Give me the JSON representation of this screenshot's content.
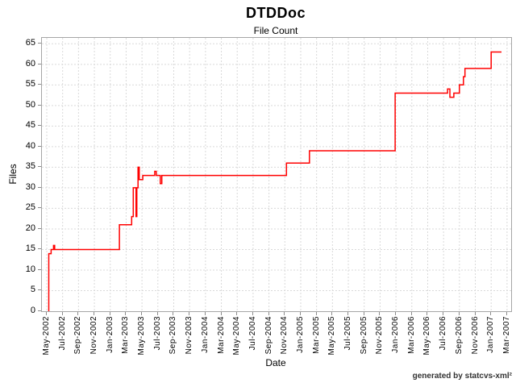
{
  "title": "DTDDoc",
  "subtitle": "File Count",
  "credit": "generated by statcvs-xml²",
  "colors": {
    "line": "#ff0000",
    "grid": "#d9d9d9",
    "plot_border": "#a6a6a6",
    "tick": "#8c8c8c",
    "text": "#000000",
    "credit_text": "#333333"
  },
  "chart_data": {
    "type": "line",
    "title": "DTDDoc",
    "subtitle": "File Count",
    "xlabel": "Date",
    "ylabel": "Files",
    "ylim": [
      0,
      65
    ],
    "y_ticks": [
      0,
      5,
      10,
      15,
      20,
      25,
      30,
      35,
      40,
      45,
      50,
      55,
      60,
      65
    ],
    "x_tick_labels": [
      "May-2002",
      "Jul-2002",
      "Sep-2002",
      "Nov-2002",
      "Jan-2003",
      "Mar-2003",
      "May-2003",
      "Jul-2003",
      "Sep-2003",
      "Nov-2003",
      "Jan-2004",
      "Mar-2004",
      "May-2004",
      "Jul-2004",
      "Sep-2004",
      "Nov-2004",
      "Jan-2005",
      "Mar-2005",
      "May-2005",
      "Jul-2005",
      "Sep-2005",
      "Nov-2005",
      "Jan-2006",
      "Mar-2006",
      "May-2006",
      "Jul-2006",
      "Sep-2006",
      "Nov-2006",
      "Jan-2007",
      "Mar-2007"
    ],
    "x_ticks_every_months": 2,
    "grid": true,
    "legend": "none",
    "line_style": "step-after",
    "point_format": "[months_since_May-2002, files]",
    "series": [
      {
        "name": "File Count",
        "color": "#ff0000",
        "points": [
          [
            0.25,
            0
          ],
          [
            0.25,
            14
          ],
          [
            0.55,
            15
          ],
          [
            0.85,
            16
          ],
          [
            1.0,
            15
          ],
          [
            9.15,
            21
          ],
          [
            10.7,
            23
          ],
          [
            10.9,
            30
          ],
          [
            11.25,
            23
          ],
          [
            11.35,
            30
          ],
          [
            11.5,
            35
          ],
          [
            11.65,
            32
          ],
          [
            12.1,
            33
          ],
          [
            13.6,
            34
          ],
          [
            13.8,
            33
          ],
          [
            14.3,
            31
          ],
          [
            14.5,
            33
          ],
          [
            30.2,
            36
          ],
          [
            33.1,
            39
          ],
          [
            43.9,
            53
          ],
          [
            50.5,
            54
          ],
          [
            50.8,
            52
          ],
          [
            51.3,
            53
          ],
          [
            52.0,
            55
          ],
          [
            52.5,
            57
          ],
          [
            52.7,
            59
          ],
          [
            56.0,
            63
          ],
          [
            57.3,
            63
          ]
        ]
      }
    ]
  }
}
